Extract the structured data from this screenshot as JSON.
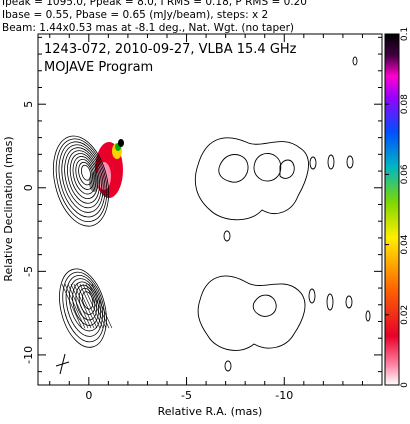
{
  "header": {
    "line1": "Ipeak = 1095.0, Ppeak = 8.0, I RMS = 0.18, P RMS = 0.20",
    "line2": "Ibase = 0.55, Pbase = 0.65 (mJy/beam), steps: x 2",
    "line3": "Beam: 1.44x0.53 mas at -8.1 deg., Nat. Wgt. (no taper)"
  },
  "plot": {
    "title_line1": "1243-072, 2010-09-27, VLBA 15.4 GHz",
    "title_line2": "MOJAVE Program",
    "xlabel": "Relative R.A. (mas)",
    "ylabel": "Relative Declination (mas)"
  },
  "chart_data": {
    "type": "contour",
    "x_ticks": [
      0,
      -5,
      -10
    ],
    "x_tick_labels": [
      "0",
      "-5",
      "-10"
    ],
    "y_ticks": [
      5,
      0,
      -5,
      -10
    ],
    "y_tick_labels": [
      "5",
      "0",
      "-5",
      "-10"
    ],
    "xlim": [
      2.6,
      -15.0
    ],
    "ylim": [
      -11.8,
      9.2
    ],
    "colorbar": {
      "min": 0,
      "max": 0.1,
      "ticks": [
        0,
        0.02,
        0.04,
        0.06,
        0.08,
        0.1
      ],
      "tick_labels": [
        "0",
        "0.02",
        "0.04",
        "0.06",
        "0.08",
        "0.1"
      ]
    },
    "panels": [
      {
        "name": "upper",
        "core": {
          "x": 0.4,
          "y": 0.4,
          "levels": 11
        },
        "polarization_color": "#e8002a",
        "jet_components": [
          {
            "x": -6.0,
            "y": 1.5
          },
          {
            "x": -9.2,
            "y": 0.2
          },
          {
            "x": -11.0,
            "y": 0.0
          },
          {
            "x": -12.2,
            "y": 0.0
          },
          {
            "x": -13.6,
            "y": 0.0
          }
        ]
      },
      {
        "name": "lower",
        "core": {
          "x": 0.3,
          "y": -7.2,
          "levels": 8
        },
        "jet_components": [
          {
            "x": -6.0,
            "y": -6.5
          },
          {
            "x": -9.2,
            "y": -7.0
          }
        ]
      }
    ],
    "beam": {
      "major_mas": 1.44,
      "minor_mas": 0.53,
      "pa_deg": -8.1
    }
  }
}
